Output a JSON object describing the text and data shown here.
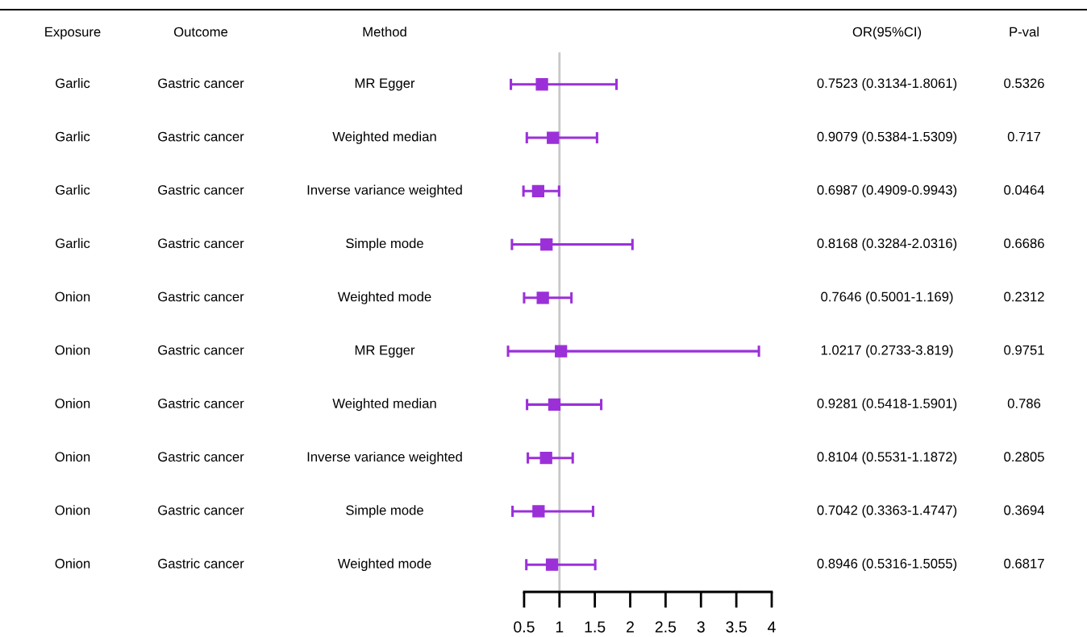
{
  "chart_data": {
    "type": "scatter",
    "orientation": "horizontal",
    "categories": [
      "MR Egger",
      "Weighted median",
      "Inverse variance weighted",
      "Simple mode",
      "Weighted mode",
      "MR Egger",
      "Weighted median",
      "Inverse variance weighted",
      "Simple mode",
      "Weighted mode"
    ],
    "values": [
      0.7523,
      0.9079,
      0.6987,
      0.8168,
      0.7646,
      1.0217,
      0.9281,
      0.8104,
      0.7042,
      0.8946
    ],
    "errors": [
      [
        0.3134,
        1.8061
      ],
      [
        0.5384,
        1.5309
      ],
      [
        0.4909,
        0.9943
      ],
      [
        0.3284,
        2.0316
      ],
      [
        0.5001,
        1.169
      ],
      [
        0.2733,
        3.819
      ],
      [
        0.5418,
        1.5901
      ],
      [
        0.5531,
        1.1872
      ],
      [
        0.3363,
        1.4747
      ],
      [
        0.5316,
        1.5055
      ]
    ],
    "color": "#9b30d9",
    "marker": "square",
    "value_labels": [
      "0.7523 (0.3134-1.8061)",
      "0.9079 (0.5384-1.5309)",
      "0.6987 (0.4909-0.9943)",
      "0.8168 (0.3284-2.0316)",
      "0.7646 (0.5001-1.169)",
      "1.0217 (0.2733-3.819)",
      "0.9281 (0.5418-1.5901)",
      "0.8104 (0.5531-1.1872)",
      "0.7042 (0.3363-1.4747)",
      "0.8946 (0.5316-1.5055)"
    ],
    "annotations": [
      "Exposure",
      "Outcome",
      "Method",
      "OR(95%CI)",
      "P-val",
      "Garlic",
      "Gastric cancer",
      "0.5326",
      "Garlic",
      "Gastric cancer",
      "0.717",
      "Garlic",
      "Gastric cancer",
      "0.0464",
      "Garlic",
      "Gastric cancer",
      "0.6686",
      "Onion",
      "Gastric cancer",
      "0.2312",
      "Onion",
      "Gastric cancer",
      "0.9751",
      "Onion",
      "Gastric cancer",
      "0.786",
      "Onion",
      "Gastric cancer",
      "0.2805",
      "Onion",
      "Gastric cancer",
      "0.3694",
      "Onion",
      "Gastric cancer",
      "0.6817"
    ],
    "xlim": [
      0.25,
      4
    ],
    "xticks": [
      0.5,
      1,
      1.5,
      2,
      2.5,
      3,
      3.5,
      4
    ],
    "ref_lines": [
      {
        "axis": "x",
        "value": 1,
        "color": "#c8c8c8"
      }
    ],
    "grid": false,
    "tick_labels": "x"
  }
}
